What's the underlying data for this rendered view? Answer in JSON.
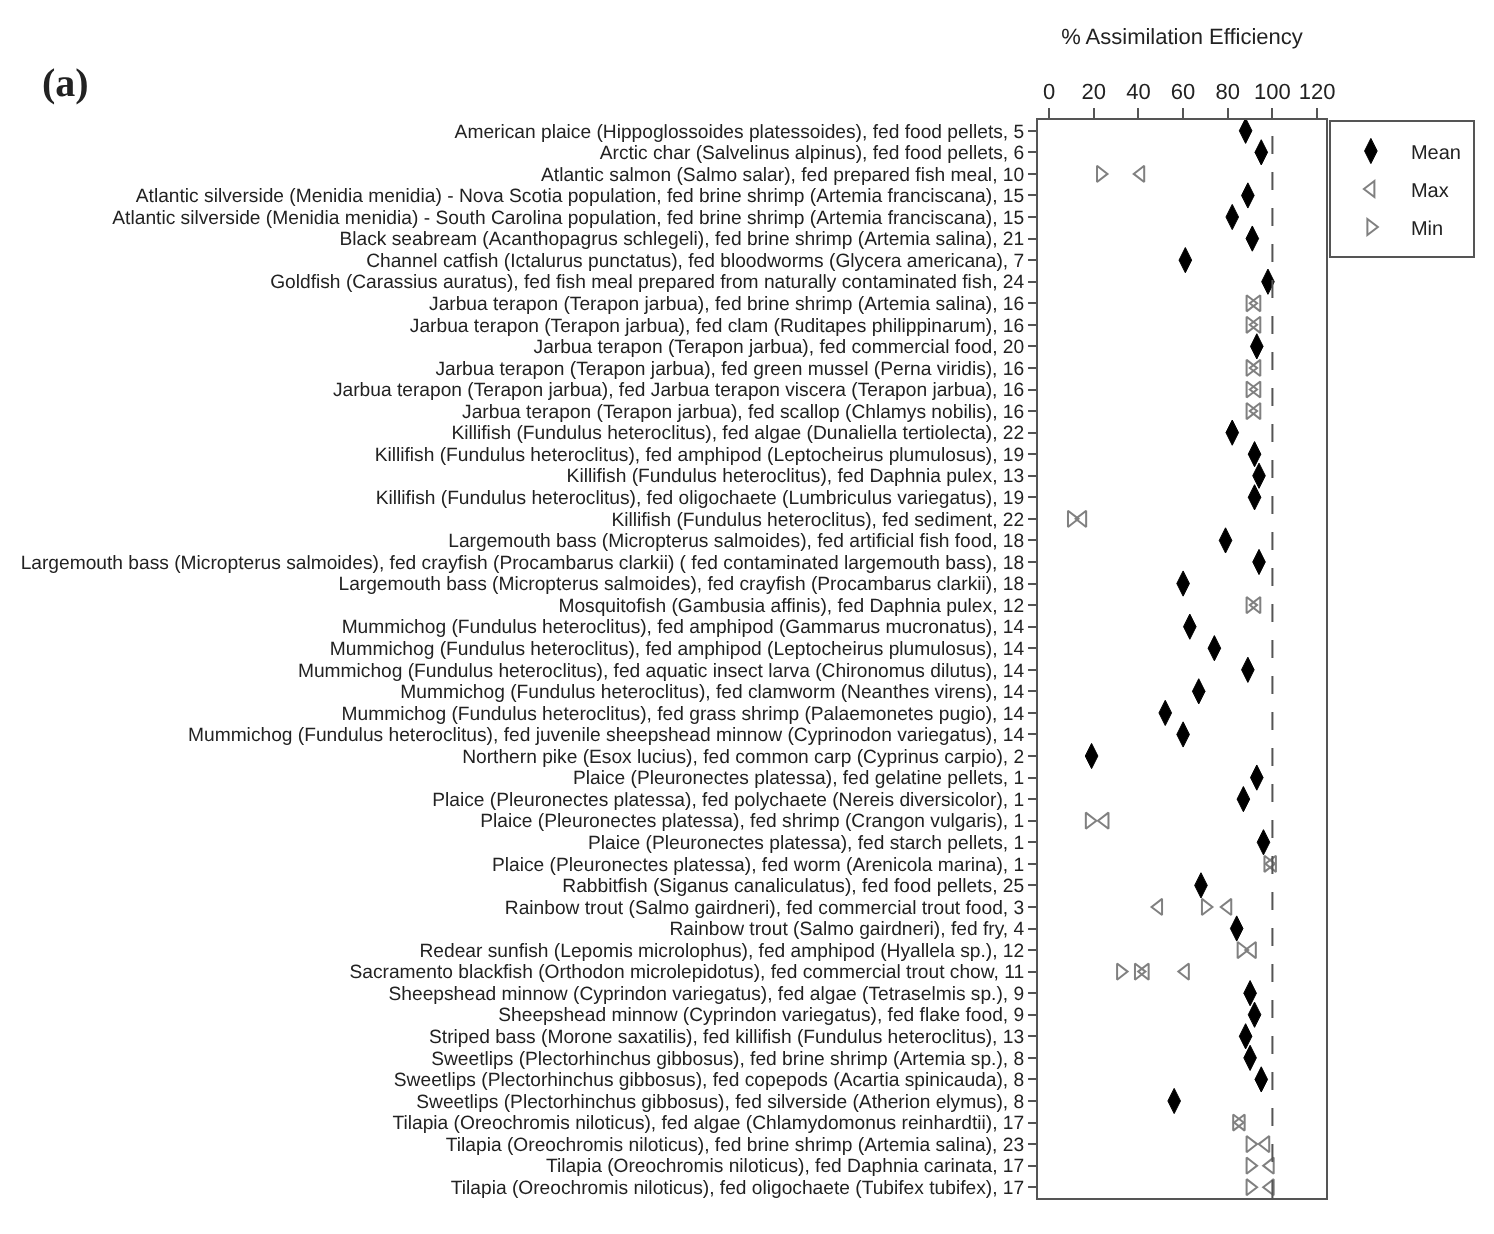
{
  "chart_data": {
    "type": "scatter",
    "orientation": "horizontal",
    "xlabel": "% Assimilation Efficiency",
    "annotations": [
      "(a)"
    ],
    "categories": [
      "American plaice (Hippoglossoides platessoides), fed food pellets, 5",
      "Arctic char (Salvelinus alpinus), fed food pellets, 6",
      "Atlantic salmon (Salmo salar), fed prepared fish meal, 10",
      "Atlantic silverside (Menidia menidia) - Nova Scotia population, fed brine shrimp (Artemia franciscana), 15",
      "Atlantic silverside (Menidia menidia) - South Carolina population, fed brine shrimp (Artemia franciscana), 15",
      "Black seabream (Acanthopagrus schlegeli), fed brine shrimp (Artemia salina), 21",
      "Channel catfish (Ictalurus punctatus), fed bloodworms (Glycera americana), 7",
      "Goldfish (Carassius auratus), fed fish meal prepared from naturally contaminated fish, 24",
      "Jarbua terapon (Terapon jarbua), fed brine shrimp (Artemia salina), 16",
      "Jarbua terapon (Terapon jarbua), fed clam (Ruditapes philippinarum), 16",
      "Jarbua terapon (Terapon jarbua), fed commercial food, 20",
      "Jarbua terapon (Terapon jarbua), fed green mussel (Perna viridis), 16",
      "Jarbua terapon (Terapon jarbua), fed Jarbua terapon viscera (Terapon jarbua), 16",
      "Jarbua terapon (Terapon jarbua), fed scallop (Chlamys nobilis), 16",
      "Killifish (Fundulus heteroclitus), fed algae (Dunaliella tertiolecta), 22",
      "Killifish (Fundulus heteroclitus), fed amphipod (Leptocheirus plumulosus), 19",
      "Killifish (Fundulus heteroclitus), fed Daphnia pulex, 13",
      "Killifish (Fundulus heteroclitus), fed oligochaete (Lumbriculus variegatus), 19",
      "Killifish (Fundulus heteroclitus), fed sediment, 22",
      "Largemouth bass (Micropterus salmoides), fed artificial fish food, 18",
      "Largemouth bass (Micropterus salmoides), fed crayfish (Procambarus clarkii) ( fed contaminated largemouth bass), 18",
      "Largemouth bass (Micropterus salmoides), fed crayfish (Procambarus clarkii), 18",
      "Mosquitofish (Gambusia affinis), fed Daphnia pulex, 12",
      "Mummichog (Fundulus heteroclitus), fed amphipod (Gammarus mucronatus), 14",
      "Mummichog (Fundulus heteroclitus), fed amphipod (Leptocheirus plumulosus), 14",
      "Mummichog (Fundulus heteroclitus), fed aquatic insect larva (Chironomus dilutus), 14",
      "Mummichog (Fundulus heteroclitus), fed clamworm (Neanthes virens), 14",
      "Mummichog (Fundulus heteroclitus), fed grass shrimp (Palaemonetes pugio), 14",
      "Mummichog (Fundulus heteroclitus), fed juvenile sheepshead minnow (Cyprinodon variegatus), 14",
      "Northern pike (Esox lucius), fed common carp (Cyprinus carpio), 2",
      "Plaice (Pleuronectes platessa), fed gelatine pellets, 1",
      "Plaice (Pleuronectes platessa), fed polychaete (Nereis diversicolor), 1",
      "Plaice (Pleuronectes platessa), fed shrimp (Crangon vulgaris), 1",
      "Plaice (Pleuronectes platessa), fed starch pellets, 1",
      "Plaice (Pleuronectes platessa), fed worm (Arenicola marina), 1",
      "Rabbitfish (Siganus canaliculatus), fed food pellets, 25",
      "Rainbow trout (Salmo gairdneri), fed commercial trout food, 3",
      "Rainbow trout (Salmo gairdneri), fed fry, 4",
      "Redear sunfish (Lepomis microlophus), fed amphipod (Hyallela sp.), 12",
      "Sacramento blackfish (Orthodon microlepidotus), fed commercial trout chow, 11",
      "Sheepshead minnow (Cyprindon variegatus), fed algae (Tetraselmis sp.), 9",
      "Sheepshead minnow (Cyprindon variegatus), fed flake food, 9",
      "Striped bass (Morone saxatilis), fed killifish (Fundulus heteroclitus), 13",
      "Sweetlips (Plectorhinchus gibbosus), fed brine shrimp (Artemia sp.), 8",
      "Sweetlips (Plectorhinchus gibbosus), fed copepods (Acartia spinicauda), 8",
      "Sweetlips (Plectorhinchus gibbosus), fed silverside (Atherion elymus), 8",
      "Tilapia (Oreochromis niloticus), fed algae (Chlamydomonus reinhardtii), 17",
      "Tilapia (Oreochromis niloticus), fed brine shrimp (Artemia salina), 23",
      "Tilapia (Oreochromis niloticus), fed Daphnia carinata, 17",
      "Tilapia (Oreochromis niloticus), fed oligochaete (Tubifex tubifex), 17"
    ],
    "series": [
      {
        "name": "Mean",
        "color": "#000000",
        "marker": "diamond",
        "values": [
          88,
          95,
          null,
          89,
          82,
          91,
          61,
          98,
          null,
          null,
          93,
          null,
          null,
          null,
          82,
          92,
          94,
          92,
          null,
          79,
          94,
          60,
          null,
          63,
          74,
          89,
          67,
          52,
          60,
          19,
          93,
          87,
          null,
          96,
          null,
          68,
          null,
          84,
          null,
          null,
          90,
          92,
          88,
          90,
          95,
          56,
          null,
          null,
          null,
          null
        ]
      },
      {
        "name": "Max",
        "color": "#808080",
        "marker": "triangle-left",
        "values": [
          null,
          null,
          41,
          null,
          null,
          null,
          null,
          null,
          93,
          93,
          null,
          93,
          93,
          93,
          null,
          null,
          null,
          null,
          15,
          null,
          null,
          null,
          93,
          null,
          null,
          null,
          null,
          null,
          null,
          null,
          null,
          null,
          25,
          null,
          100,
          null,
          80,
          null,
          91,
          61,
          null,
          null,
          null,
          null,
          null,
          null,
          86,
          97,
          99,
          99
        ]
      },
      {
        "name": "Min",
        "color": "#808080",
        "marker": "triangle-right",
        "values": [
          null,
          null,
          23,
          null,
          null,
          null,
          null,
          null,
          90,
          90,
          null,
          90,
          90,
          90,
          null,
          null,
          null,
          null,
          10,
          null,
          null,
          null,
          90,
          null,
          null,
          null,
          null,
          null,
          null,
          null,
          null,
          null,
          18,
          null,
          98,
          null,
          70,
          null,
          86,
          32,
          null,
          null,
          null,
          null,
          null,
          null,
          84,
          90,
          90,
          90
        ]
      },
      {
        "color": "#808080",
        "marker": "triangle-left",
        "values": [
          null,
          null,
          null,
          null,
          null,
          null,
          null,
          null,
          null,
          null,
          null,
          null,
          null,
          null,
          null,
          null,
          null,
          null,
          null,
          null,
          null,
          null,
          null,
          null,
          null,
          null,
          null,
          null,
          null,
          null,
          null,
          null,
          null,
          null,
          null,
          null,
          49,
          null,
          null,
          43,
          null,
          null,
          null,
          null,
          null,
          null,
          null,
          null,
          null,
          null
        ]
      },
      {
        "color": "#808080",
        "marker": "triangle-right",
        "values": [
          null,
          null,
          null,
          null,
          null,
          null,
          null,
          null,
          null,
          null,
          null,
          null,
          null,
          null,
          null,
          null,
          null,
          null,
          null,
          null,
          null,
          null,
          null,
          null,
          null,
          null,
          null,
          null,
          null,
          null,
          null,
          null,
          null,
          null,
          null,
          null,
          null,
          null,
          null,
          40,
          null,
          null,
          null,
          null,
          null,
          null,
          null,
          null,
          null,
          null
        ]
      }
    ],
    "xlim": [
      -5,
      124
    ],
    "xticks": [
      0,
      20,
      40,
      60,
      80,
      100,
      120
    ],
    "ref_lines": [
      {
        "axis": "x",
        "value": 100,
        "color": "#555555",
        "line_style": "dashed"
      }
    ],
    "legend": "top right"
  }
}
